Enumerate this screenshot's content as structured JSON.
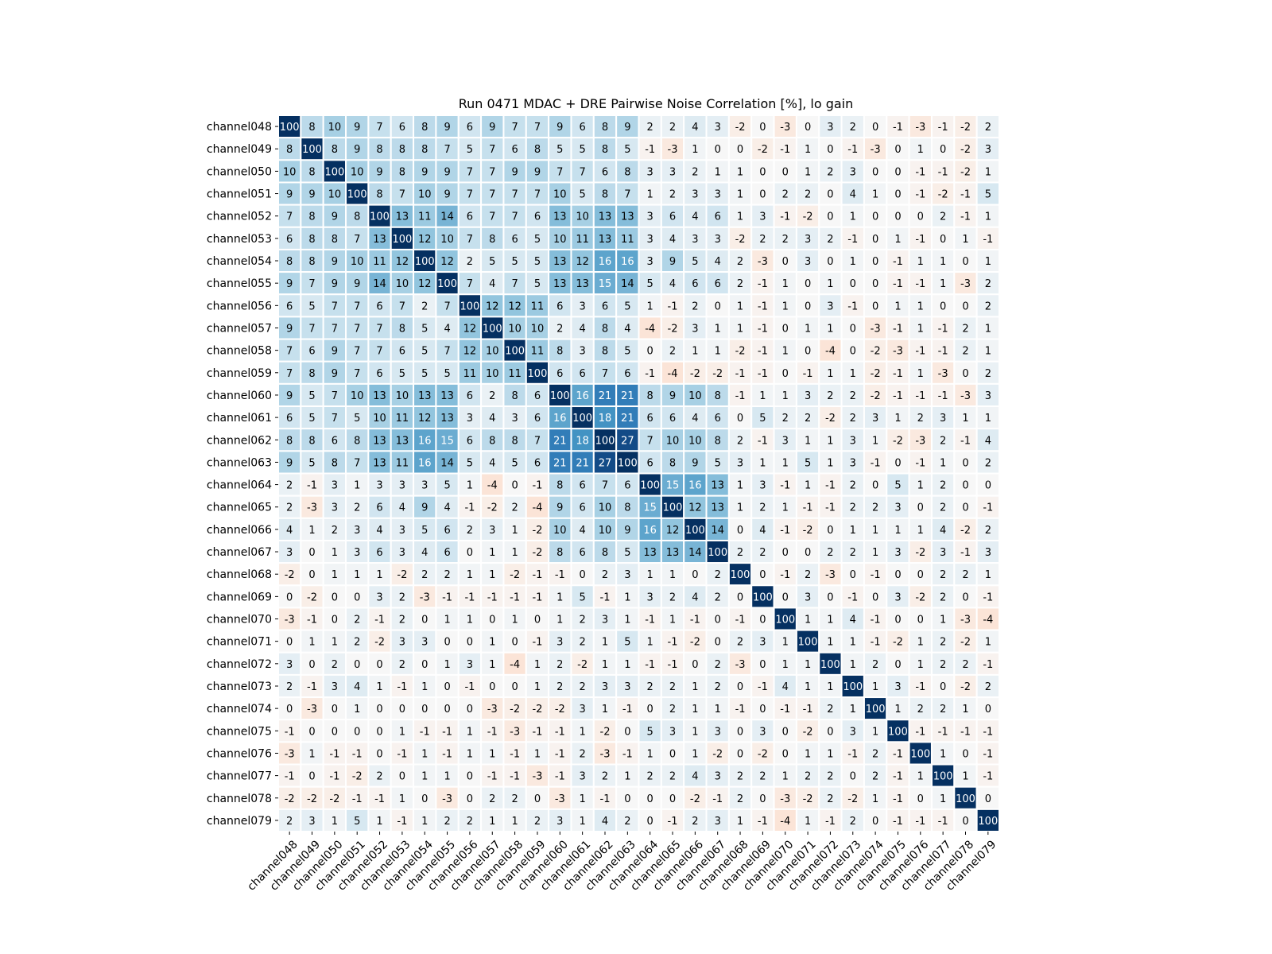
{
  "chart_data": {
    "type": "heatmap",
    "title": "Run 0471 MDAC + DRE Pairwise Noise Correlation [%], lo gain",
    "xlabel": "",
    "ylabel": "",
    "categories": [
      "channel048",
      "channel049",
      "channel050",
      "channel051",
      "channel052",
      "channel053",
      "channel054",
      "channel055",
      "channel056",
      "channel057",
      "channel058",
      "channel059",
      "channel060",
      "channel061",
      "channel062",
      "channel063",
      "channel064",
      "channel065",
      "channel066",
      "channel067",
      "channel068",
      "channel069",
      "channel070",
      "channel071",
      "channel072",
      "channel073",
      "channel074",
      "channel075",
      "channel076",
      "channel077",
      "channel078",
      "channel079"
    ],
    "values": [
      [
        100,
        8,
        10,
        9,
        7,
        6,
        8,
        9,
        6,
        9,
        7,
        7,
        9,
        6,
        8,
        9,
        2,
        2,
        4,
        3,
        -2,
        0,
        -3,
        0,
        3,
        2,
        0,
        -1,
        -3,
        -1,
        -2,
        2
      ],
      [
        8,
        100,
        8,
        9,
        8,
        8,
        8,
        7,
        5,
        7,
        6,
        8,
        5,
        5,
        8,
        5,
        -1,
        -3,
        1,
        0,
        0,
        -2,
        -1,
        1,
        0,
        -1,
        -3,
        0,
        1,
        0,
        -2,
        3
      ],
      [
        10,
        8,
        100,
        10,
        9,
        8,
        9,
        9,
        7,
        7,
        9,
        9,
        7,
        7,
        6,
        8,
        3,
        3,
        2,
        1,
        1,
        0,
        0,
        1,
        2,
        3,
        0,
        0,
        -1,
        -1,
        -2,
        1
      ],
      [
        9,
        9,
        10,
        100,
        8,
        7,
        10,
        9,
        7,
        7,
        7,
        7,
        10,
        5,
        8,
        7,
        1,
        2,
        3,
        3,
        1,
        0,
        2,
        2,
        0,
        4,
        1,
        0,
        -1,
        -2,
        -1,
        5
      ],
      [
        7,
        8,
        9,
        8,
        100,
        13,
        11,
        14,
        6,
        7,
        7,
        6,
        13,
        10,
        13,
        13,
        3,
        6,
        4,
        6,
        1,
        3,
        -1,
        -2,
        0,
        1,
        0,
        0,
        0,
        2,
        -1,
        1
      ],
      [
        6,
        8,
        8,
        7,
        13,
        100,
        12,
        10,
        7,
        8,
        6,
        5,
        10,
        11,
        13,
        11,
        3,
        4,
        3,
        3,
        -2,
        2,
        2,
        3,
        2,
        -1,
        0,
        1,
        -1,
        0,
        1,
        -1
      ],
      [
        8,
        8,
        9,
        10,
        11,
        12,
        100,
        12,
        2,
        5,
        5,
        5,
        13,
        12,
        16,
        16,
        3,
        9,
        5,
        4,
        2,
        -3,
        0,
        3,
        0,
        1,
        0,
        -1,
        1,
        1,
        0,
        1
      ],
      [
        9,
        7,
        9,
        9,
        14,
        10,
        12,
        100,
        7,
        4,
        7,
        5,
        13,
        13,
        15,
        14,
        5,
        4,
        6,
        6,
        2,
        -1,
        1,
        0,
        1,
        0,
        0,
        -1,
        -1,
        1,
        -3,
        2
      ],
      [
        6,
        5,
        7,
        7,
        6,
        7,
        2,
        7,
        100,
        12,
        12,
        11,
        6,
        3,
        6,
        5,
        1,
        -1,
        2,
        0,
        1,
        -1,
        1,
        0,
        3,
        -1,
        0,
        1,
        1,
        0,
        0,
        2
      ],
      [
        9,
        7,
        7,
        7,
        7,
        8,
        5,
        4,
        12,
        100,
        10,
        10,
        2,
        4,
        8,
        4,
        -4,
        -2,
        3,
        1,
        1,
        -1,
        0,
        1,
        1,
        0,
        -3,
        -1,
        1,
        -1,
        2,
        1
      ],
      [
        7,
        6,
        9,
        7,
        7,
        6,
        5,
        7,
        12,
        10,
        100,
        11,
        8,
        3,
        8,
        5,
        0,
        2,
        1,
        1,
        -2,
        -1,
        1,
        0,
        -4,
        0,
        -2,
        -3,
        -1,
        -1,
        2,
        1
      ],
      [
        7,
        8,
        9,
        7,
        6,
        5,
        5,
        5,
        11,
        10,
        11,
        100,
        6,
        6,
        7,
        6,
        -1,
        -4,
        -2,
        -2,
        -1,
        -1,
        0,
        -1,
        1,
        1,
        -2,
        -1,
        1,
        -3,
        0,
        2
      ],
      [
        9,
        5,
        7,
        10,
        13,
        10,
        13,
        13,
        6,
        2,
        8,
        6,
        100,
        16,
        21,
        21,
        8,
        9,
        10,
        8,
        -1,
        1,
        1,
        3,
        2,
        2,
        -2,
        -1,
        -1,
        -1,
        -3,
        3
      ],
      [
        6,
        5,
        7,
        5,
        10,
        11,
        12,
        13,
        3,
        4,
        3,
        6,
        16,
        100,
        18,
        21,
        6,
        6,
        4,
        6,
        0,
        5,
        2,
        2,
        -2,
        2,
        3,
        1,
        2,
        3,
        1,
        1
      ],
      [
        8,
        8,
        6,
        8,
        13,
        13,
        16,
        15,
        6,
        8,
        8,
        7,
        21,
        18,
        100,
        27,
        7,
        10,
        10,
        8,
        2,
        -1,
        3,
        1,
        1,
        3,
        1,
        -2,
        -3,
        2,
        -1,
        4
      ],
      [
        9,
        5,
        8,
        7,
        13,
        11,
        16,
        14,
        5,
        4,
        5,
        6,
        21,
        21,
        27,
        100,
        6,
        8,
        9,
        5,
        3,
        1,
        1,
        5,
        1,
        3,
        -1,
        0,
        -1,
        1,
        0,
        2
      ],
      [
        2,
        -1,
        3,
        1,
        3,
        3,
        3,
        5,
        1,
        -4,
        0,
        -1,
        8,
        6,
        7,
        6,
        100,
        15,
        16,
        13,
        1,
        3,
        -1,
        1,
        -1,
        2,
        0,
        5,
        1,
        2,
        0,
        0
      ],
      [
        2,
        -3,
        3,
        2,
        6,
        4,
        9,
        4,
        -1,
        -2,
        2,
        -4,
        9,
        6,
        10,
        8,
        15,
        100,
        12,
        13,
        1,
        2,
        1,
        -1,
        -1,
        2,
        2,
        3,
        0,
        2,
        0,
        -1
      ],
      [
        4,
        1,
        2,
        3,
        4,
        3,
        5,
        6,
        2,
        3,
        1,
        -2,
        10,
        4,
        10,
        9,
        16,
        12,
        100,
        14,
        0,
        4,
        -1,
        -2,
        0,
        1,
        1,
        1,
        1,
        4,
        -2,
        2
      ],
      [
        3,
        0,
        1,
        3,
        6,
        3,
        4,
        6,
        0,
        1,
        1,
        -2,
        8,
        6,
        8,
        5,
        13,
        13,
        14,
        100,
        2,
        2,
        0,
        0,
        2,
        2,
        1,
        3,
        -2,
        3,
        -1,
        3
      ],
      [
        -2,
        0,
        1,
        1,
        1,
        -2,
        2,
        2,
        1,
        1,
        -2,
        -1,
        -1,
        0,
        2,
        3,
        1,
        1,
        0,
        2,
        100,
        0,
        -1,
        2,
        -3,
        0,
        -1,
        0,
        0,
        2,
        2,
        1
      ],
      [
        0,
        -2,
        0,
        0,
        3,
        2,
        -3,
        -1,
        -1,
        -1,
        -1,
        -1,
        1,
        5,
        -1,
        1,
        3,
        2,
        4,
        2,
        0,
        100,
        0,
        3,
        0,
        -1,
        0,
        3,
        -2,
        2,
        0,
        -1
      ],
      [
        -3,
        -1,
        0,
        2,
        -1,
        2,
        0,
        1,
        1,
        0,
        1,
        0,
        1,
        2,
        3,
        1,
        -1,
        1,
        -1,
        0,
        -1,
        0,
        100,
        1,
        1,
        4,
        -1,
        0,
        0,
        1,
        -3,
        -4
      ],
      [
        0,
        1,
        1,
        2,
        -2,
        3,
        3,
        0,
        0,
        1,
        0,
        -1,
        3,
        2,
        1,
        5,
        1,
        -1,
        -2,
        0,
        2,
        3,
        1,
        100,
        1,
        1,
        -1,
        -2,
        1,
        2,
        -2,
        1
      ],
      [
        3,
        0,
        2,
        0,
        0,
        2,
        0,
        1,
        3,
        1,
        -4,
        1,
        2,
        -2,
        1,
        1,
        -1,
        -1,
        0,
        2,
        -3,
        0,
        1,
        1,
        100,
        1,
        2,
        0,
        1,
        2,
        2,
        -1
      ],
      [
        2,
        -1,
        3,
        4,
        1,
        -1,
        1,
        0,
        -1,
        0,
        0,
        1,
        2,
        2,
        3,
        3,
        2,
        2,
        1,
        2,
        0,
        -1,
        4,
        1,
        1,
        100,
        1,
        3,
        -1,
        0,
        -2,
        2
      ],
      [
        0,
        -3,
        0,
        1,
        0,
        0,
        0,
        0,
        0,
        -3,
        -2,
        -2,
        -2,
        3,
        1,
        -1,
        0,
        2,
        1,
        1,
        -1,
        0,
        -1,
        -1,
        2,
        1,
        100,
        1,
        2,
        2,
        1,
        0
      ],
      [
        -1,
        0,
        0,
        0,
        0,
        1,
        -1,
        -1,
        1,
        -1,
        -3,
        -1,
        -1,
        1,
        -2,
        0,
        5,
        3,
        1,
        3,
        0,
        3,
        0,
        -2,
        0,
        3,
        1,
        100,
        -1,
        -1,
        -1,
        -1
      ],
      [
        -3,
        1,
        -1,
        -1,
        0,
        -1,
        1,
        -1,
        1,
        1,
        -1,
        1,
        -1,
        2,
        -3,
        -1,
        1,
        0,
        1,
        -2,
        0,
        -2,
        0,
        1,
        1,
        -1,
        2,
        -1,
        100,
        1,
        0,
        -1
      ],
      [
        -1,
        0,
        -1,
        -2,
        2,
        0,
        1,
        1,
        0,
        -1,
        -1,
        -3,
        -1,
        3,
        2,
        1,
        2,
        2,
        4,
        3,
        2,
        2,
        1,
        2,
        2,
        0,
        2,
        -1,
        1,
        100,
        1,
        -1
      ],
      [
        -2,
        -2,
        -2,
        -1,
        -1,
        1,
        0,
        -3,
        0,
        2,
        2,
        0,
        -3,
        1,
        -1,
        0,
        0,
        0,
        -2,
        -1,
        2,
        0,
        -3,
        -2,
        2,
        -2,
        1,
        -1,
        0,
        1,
        100,
        0
      ],
      [
        2,
        3,
        1,
        5,
        1,
        -1,
        1,
        2,
        2,
        1,
        1,
        2,
        3,
        1,
        4,
        2,
        0,
        -1,
        2,
        3,
        1,
        -1,
        -4,
        1,
        -1,
        2,
        0,
        -1,
        -1,
        -1,
        0,
        100
      ]
    ],
    "colormap": "RdBu",
    "color_range": [
      -30,
      30
    ],
    "cell_edge_color": "#ffffff",
    "grid": false,
    "legend": "none"
  }
}
